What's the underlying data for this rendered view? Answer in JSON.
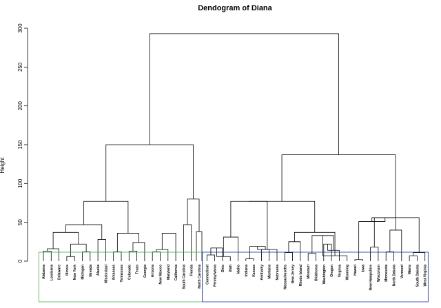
{
  "chart_data": {
    "type": "dendrogram",
    "title": "Dendogram of Diana",
    "ylabel": "Height",
    "xlabel": "",
    "ylim": [
      0,
      300
    ],
    "yticks": [
      0,
      50,
      100,
      150,
      200,
      250,
      300
    ],
    "leaves": [
      "Alabama",
      "Louisiana",
      "Delaware",
      "Illinois",
      "New York",
      "Michigan",
      "Nevada",
      "Alaska",
      "Mississippi",
      "Arkansas",
      "Tennessee",
      "Colorado",
      "Texas",
      "Georgia",
      "Arizona",
      "New Mexico",
      "Maryland",
      "California",
      "South Carolina",
      "Florida",
      "North Carolina",
      "Connecticut",
      "Pennsylvania",
      "Ohio",
      "Utah",
      "Idaho",
      "Indiana",
      "Kansas",
      "Kentucky",
      "Montana",
      "Nebraska",
      "Massachusetts",
      "New Jersey",
      "Rhode Island",
      "Missouri",
      "Oklahoma",
      "Washington",
      "Oregon",
      "Virginia",
      "Wyoming",
      "Hawaii",
      "Iowa",
      "New Hampshire",
      "Wisconsin",
      "Minnesota",
      "North Dakota",
      "Vermont",
      "Maine",
      "South Dakota",
      "West Virginia"
    ],
    "merges": [
      {
        "a": "L0",
        "b": "L1",
        "h": 13
      },
      {
        "a": "N0",
        "b": "L2",
        "h": 16
      },
      {
        "a": "L3",
        "b": "L4",
        "h": 6
      },
      {
        "a": "L5",
        "b": "L6",
        "h": 12
      },
      {
        "a": "N2",
        "b": "N3",
        "h": 22
      },
      {
        "a": "N1",
        "b": "N4",
        "h": 37
      },
      {
        "a": "L7",
        "b": "L8",
        "h": 28
      },
      {
        "a": "N5",
        "b": "N6",
        "h": 47
      },
      {
        "a": "L9",
        "b": "L10",
        "h": 12
      },
      {
        "a": "L11",
        "b": "L12",
        "h": 13
      },
      {
        "a": "N9",
        "b": "L13",
        "h": 24
      },
      {
        "a": "N8",
        "b": "N10",
        "h": 36
      },
      {
        "a": "N7",
        "b": "N11",
        "h": 77
      },
      {
        "a": "L14",
        "b": "L15",
        "h": 12
      },
      {
        "a": "N13",
        "b": "L16",
        "h": 15
      },
      {
        "a": "N14",
        "b": "L17",
        "h": 36
      },
      {
        "a": "L18",
        "b": "L19",
        "h": 47
      },
      {
        "a": "L20",
        "b": "L20",
        "h": 38
      },
      {
        "a": "N16",
        "b": "N17",
        "h": 80
      },
      {
        "a": "N12",
        "b": "N18",
        "h": 150
      },
      {
        "a": "L21",
        "b": "L22",
        "h": 8
      },
      {
        "a": "N20",
        "b": "L23",
        "h": 17
      },
      {
        "a": "L24",
        "b": "N21",
        "h": 6
      },
      {
        "a": "N22",
        "b": "L25",
        "h": 31
      },
      {
        "a": "L26",
        "b": "L27",
        "h": 3
      },
      {
        "a": "L28",
        "b": "L29",
        "h": 15
      },
      {
        "a": "N24",
        "b": "N25",
        "h": 19
      },
      {
        "a": "N26",
        "b": "L30",
        "h": 15
      },
      {
        "a": "N23",
        "b": "N27",
        "h": 77
      },
      {
        "a": "L31",
        "b": "L32",
        "h": 11
      },
      {
        "a": "N29",
        "b": "L33",
        "h": 25
      },
      {
        "a": "L34",
        "b": "L35",
        "h": 10
      },
      {
        "a": "L36",
        "b": "L37",
        "h": 22
      },
      {
        "a": "N32",
        "b": "L38",
        "h": 14
      },
      {
        "a": "N31",
        "b": "N33",
        "h": 33
      },
      {
        "a": "L39",
        "b": "N34",
        "h": 7
      },
      {
        "a": "N30",
        "b": "N35",
        "h": 37
      },
      {
        "a": "N28",
        "b": "N36",
        "h": 77
      },
      {
        "a": "L40",
        "b": "L41",
        "h": 2
      },
      {
        "a": "L42",
        "b": "L43",
        "h": 18
      },
      {
        "a": "L44",
        "b": "L45",
        "h": 12
      },
      {
        "a": "N40",
        "b": "L46",
        "h": 40
      },
      {
        "a": "N39",
        "b": "N41",
        "h": 56
      },
      {
        "a": "N38",
        "b": "N42",
        "h": 51
      },
      {
        "a": "L47",
        "b": "L48",
        "h": 7
      },
      {
        "a": "N44",
        "b": "L49",
        "h": 11
      },
      {
        "a": "N43",
        "b": "N45",
        "h": 56
      },
      {
        "a": "N37",
        "b": "N46",
        "h": 137
      },
      {
        "a": "N19",
        "b": "N47",
        "h": 293
      }
    ],
    "clusters": [
      {
        "from": 0,
        "to": 20,
        "color": "#3cb043"
      },
      {
        "from": 21,
        "to": 49,
        "color": "#1f2aa8"
      }
    ]
  }
}
